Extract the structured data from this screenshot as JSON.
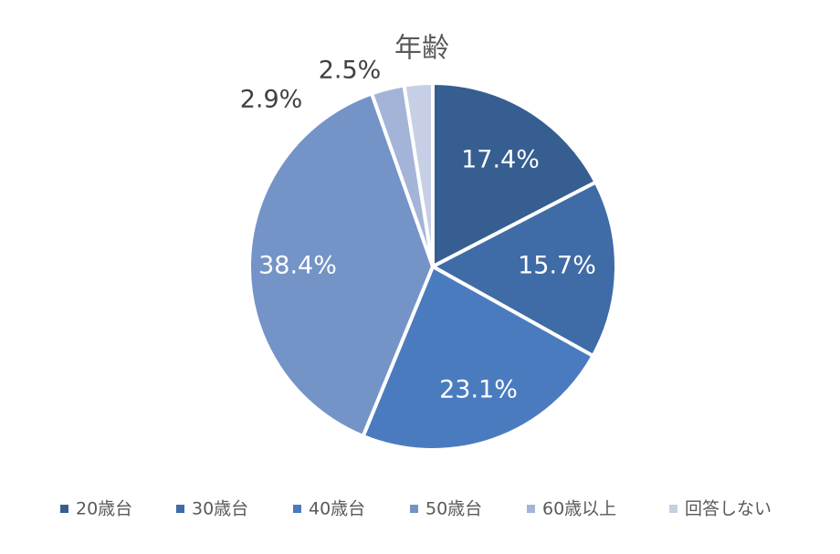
{
  "chart_data": {
    "type": "pie",
    "title": "年齢",
    "categories": [
      "20歳台",
      "30歳台",
      "40歳台",
      "50歳台",
      "60歳以上",
      "回答しない"
    ],
    "values": [
      17.4,
      15.7,
      23.1,
      38.4,
      2.9,
      2.5
    ],
    "value_labels": [
      "17.4%",
      "15.7%",
      "23.1%",
      "38.4%",
      "2.9%",
      "2.5%"
    ],
    "colors": [
      "#365e91",
      "#3f6ba6",
      "#4b7bbf",
      "#7493c7",
      "#a3b4d8",
      "#c6cfe5"
    ],
    "legend": "bottom"
  }
}
